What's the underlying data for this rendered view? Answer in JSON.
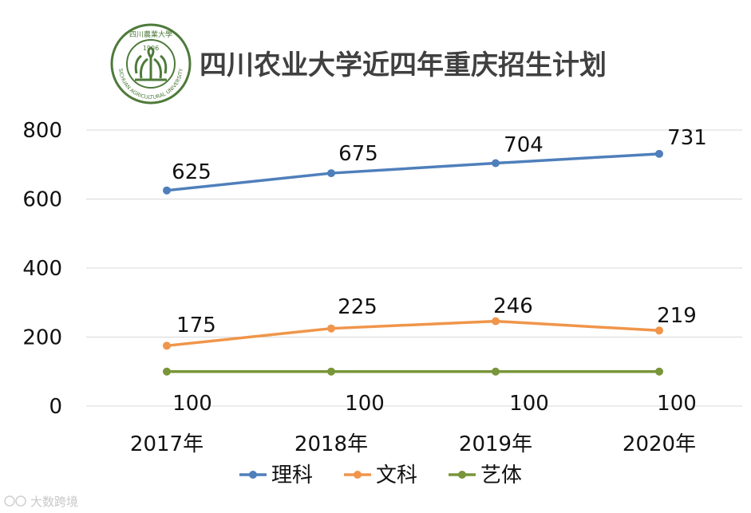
{
  "header": {
    "title": "四川农业大学近四年重庆招生计划",
    "logo": {
      "name": "sichuan-agricultural-university-seal",
      "text_top": "四川農業大學",
      "year": "1906",
      "text_bottom": "SICHUAN AGRICULTURAL UNIVERSITY",
      "color": "#4e7a3a"
    }
  },
  "watermark": "大数跨境",
  "chart_data": {
    "type": "line",
    "title": "四川农业大学近四年重庆招生计划",
    "categories": [
      "2017年",
      "2018年",
      "2019年",
      "2020年"
    ],
    "yticks": [
      "0",
      "200",
      "400",
      "600",
      "800"
    ],
    "ylim": [
      0,
      800
    ],
    "grid": true,
    "legend_position": "bottom",
    "series": [
      {
        "name": "理科",
        "color": "#4f7fbb",
        "values": [
          625,
          675,
          704,
          731
        ],
        "labels": [
          "625",
          "675",
          "704",
          "731"
        ]
      },
      {
        "name": "文科",
        "color": "#f0954a",
        "values": [
          175,
          225,
          246,
          219
        ],
        "labels": [
          "175",
          "225",
          "246",
          "219"
        ]
      },
      {
        "name": "艺体",
        "color": "#78953a",
        "values": [
          100,
          100,
          100,
          100
        ],
        "labels": [
          "100",
          "100",
          "100",
          "100"
        ]
      }
    ]
  }
}
